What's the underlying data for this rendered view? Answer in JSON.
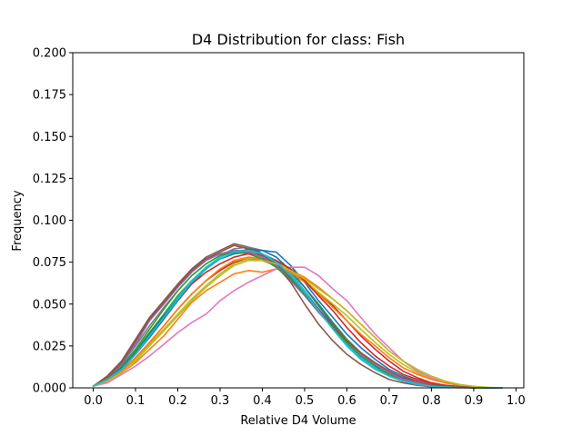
{
  "chart_data": {
    "type": "line",
    "title": "D4 Distribution for class: Fish",
    "xlabel": "Relative D4 Volume",
    "ylabel": "Frequency",
    "xlim": [
      -0.0485,
      1.0185
    ],
    "ylim": [
      0,
      0.2
    ],
    "xticks": [
      "0.0",
      "0.1",
      "0.2",
      "0.3",
      "0.4",
      "0.5",
      "0.6",
      "0.7",
      "0.8",
      "0.9",
      "1.0"
    ],
    "yticks": [
      "0.000",
      "0.025",
      "0.050",
      "0.075",
      "0.100",
      "0.125",
      "0.150",
      "0.175",
      "0.200"
    ],
    "grid": false,
    "legend": "none",
    "x": [
      0.0,
      0.033,
      0.067,
      0.1,
      0.133,
      0.167,
      0.2,
      0.233,
      0.267,
      0.3,
      0.333,
      0.367,
      0.4,
      0.433,
      0.467,
      0.5,
      0.533,
      0.567,
      0.6,
      0.633,
      0.667,
      0.7,
      0.733,
      0.767,
      0.8,
      0.833,
      0.867,
      0.9,
      0.933,
      0.967
    ],
    "series": [
      {
        "color": "#1f77b4",
        "values": [
          0.001,
          0.005,
          0.011,
          0.02,
          0.03,
          0.041,
          0.052,
          0.062,
          0.071,
          0.077,
          0.08,
          0.081,
          0.082,
          0.081,
          0.073,
          0.063,
          0.052,
          0.042,
          0.032,
          0.024,
          0.017,
          0.011,
          0.007,
          0.004,
          0.002,
          0.001,
          0.0005,
          0.0002,
          0.0001,
          0.0
        ]
      },
      {
        "color": "#ff7f0e",
        "values": [
          0.001,
          0.004,
          0.009,
          0.015,
          0.023,
          0.031,
          0.041,
          0.051,
          0.058,
          0.063,
          0.068,
          0.07,
          0.069,
          0.071,
          0.07,
          0.066,
          0.06,
          0.053,
          0.046,
          0.038,
          0.03,
          0.022,
          0.016,
          0.01,
          0.006,
          0.003,
          0.0015,
          0.0007,
          0.0002,
          0.0
        ]
      },
      {
        "color": "#2ca02c",
        "values": [
          0.001,
          0.005,
          0.012,
          0.022,
          0.033,
          0.044,
          0.055,
          0.064,
          0.072,
          0.077,
          0.08,
          0.081,
          0.079,
          0.075,
          0.069,
          0.06,
          0.05,
          0.039,
          0.029,
          0.021,
          0.014,
          0.009,
          0.005,
          0.003,
          0.0015,
          0.0007,
          0.0003,
          0.0001,
          0.0,
          0.0
        ]
      },
      {
        "color": "#d62728",
        "values": [
          0.001,
          0.005,
          0.01,
          0.018,
          0.027,
          0.037,
          0.047,
          0.056,
          0.064,
          0.07,
          0.075,
          0.077,
          0.076,
          0.073,
          0.069,
          0.064,
          0.057,
          0.049,
          0.04,
          0.031,
          0.023,
          0.016,
          0.01,
          0.006,
          0.003,
          0.0015,
          0.0007,
          0.0003,
          0.0001,
          0.0
        ]
      },
      {
        "color": "#9467bd",
        "values": [
          0.001,
          0.006,
          0.015,
          0.027,
          0.041,
          0.051,
          0.061,
          0.07,
          0.077,
          0.08,
          0.081,
          0.08,
          0.077,
          0.072,
          0.064,
          0.055,
          0.045,
          0.036,
          0.027,
          0.02,
          0.014,
          0.009,
          0.006,
          0.004,
          0.002,
          0.001,
          0.0005,
          0.0002,
          0.0001,
          0.0
        ]
      },
      {
        "color": "#8c564b",
        "values": [
          0.001,
          0.007,
          0.016,
          0.029,
          0.042,
          0.052,
          0.062,
          0.071,
          0.078,
          0.082,
          0.086,
          0.084,
          0.08,
          0.073,
          0.063,
          0.05,
          0.038,
          0.028,
          0.02,
          0.014,
          0.009,
          0.005,
          0.003,
          0.0015,
          0.0007,
          0.0003,
          0.0001,
          0.0,
          0.0,
          0.0
        ]
      },
      {
        "color": "#e377c2",
        "values": [
          0.001,
          0.003,
          0.008,
          0.013,
          0.019,
          0.026,
          0.033,
          0.039,
          0.044,
          0.052,
          0.058,
          0.063,
          0.067,
          0.071,
          0.072,
          0.072,
          0.067,
          0.059,
          0.052,
          0.042,
          0.032,
          0.024,
          0.016,
          0.01,
          0.006,
          0.003,
          0.0015,
          0.0006,
          0.0002,
          0.0
        ]
      },
      {
        "color": "#7f7f7f",
        "values": [
          0.001,
          0.006,
          0.014,
          0.025,
          0.037,
          0.048,
          0.058,
          0.067,
          0.074,
          0.079,
          0.083,
          0.084,
          0.082,
          0.078,
          0.07,
          0.06,
          0.049,
          0.038,
          0.028,
          0.02,
          0.013,
          0.008,
          0.005,
          0.003,
          0.0015,
          0.0007,
          0.0003,
          0.0001,
          0.0,
          0.0
        ]
      },
      {
        "color": "#bcbd22",
        "values": [
          0.001,
          0.004,
          0.01,
          0.017,
          0.026,
          0.035,
          0.044,
          0.053,
          0.061,
          0.068,
          0.074,
          0.077,
          0.077,
          0.075,
          0.07,
          0.064,
          0.057,
          0.05,
          0.043,
          0.035,
          0.027,
          0.02,
          0.014,
          0.009,
          0.005,
          0.003,
          0.0015,
          0.0006,
          0.0002,
          0.0
        ]
      },
      {
        "color": "#17becf",
        "values": [
          0.001,
          0.005,
          0.012,
          0.021,
          0.032,
          0.043,
          0.054,
          0.064,
          0.072,
          0.078,
          0.082,
          0.082,
          0.08,
          0.076,
          0.068,
          0.058,
          0.047,
          0.036,
          0.026,
          0.018,
          0.012,
          0.007,
          0.004,
          0.002,
          0.001,
          0.0005,
          0.0002,
          0.0001,
          0.0,
          0.0
        ]
      },
      {
        "color": "#1f77b4",
        "values": [
          0.001,
          0.005,
          0.012,
          0.021,
          0.032,
          0.043,
          0.053,
          0.063,
          0.071,
          0.077,
          0.08,
          0.083,
          0.082,
          0.078,
          0.07,
          0.06,
          0.049,
          0.038,
          0.028,
          0.02,
          0.013,
          0.008,
          0.005,
          0.003,
          0.0015,
          0.0007,
          0.0003,
          0.0001,
          0.0,
          0.0
        ]
      },
      {
        "color": "#ff7f0e",
        "values": [
          0.001,
          0.004,
          0.01,
          0.018,
          0.027,
          0.037,
          0.047,
          0.056,
          0.064,
          0.071,
          0.076,
          0.078,
          0.077,
          0.074,
          0.069,
          0.063,
          0.056,
          0.048,
          0.04,
          0.032,
          0.025,
          0.018,
          0.012,
          0.008,
          0.005,
          0.003,
          0.0015,
          0.0006,
          0.0002,
          0.0
        ]
      },
      {
        "color": "#2ca02c",
        "values": [
          0.001,
          0.006,
          0.013,
          0.023,
          0.035,
          0.047,
          0.058,
          0.067,
          0.074,
          0.079,
          0.081,
          0.08,
          0.077,
          0.072,
          0.065,
          0.056,
          0.046,
          0.036,
          0.027,
          0.019,
          0.013,
          0.008,
          0.005,
          0.003,
          0.0015,
          0.0007,
          0.0003,
          0.0001,
          0.0,
          0.0
        ]
      },
      {
        "color": "#d62728",
        "values": [
          0.001,
          0.005,
          0.011,
          0.02,
          0.031,
          0.042,
          0.053,
          0.062,
          0.069,
          0.074,
          0.078,
          0.08,
          0.079,
          0.076,
          0.071,
          0.064,
          0.055,
          0.046,
          0.036,
          0.027,
          0.019,
          0.013,
          0.008,
          0.005,
          0.003,
          0.0015,
          0.0007,
          0.0003,
          0.0001,
          0.0
        ]
      },
      {
        "color": "#9467bd",
        "values": [
          0.001,
          0.006,
          0.014,
          0.026,
          0.04,
          0.05,
          0.06,
          0.069,
          0.076,
          0.08,
          0.082,
          0.081,
          0.078,
          0.073,
          0.066,
          0.057,
          0.047,
          0.037,
          0.028,
          0.02,
          0.014,
          0.009,
          0.005,
          0.003,
          0.0015,
          0.0007,
          0.0003,
          0.0001,
          0.0,
          0.0
        ]
      },
      {
        "color": "#8c564b",
        "values": [
          0.001,
          0.006,
          0.015,
          0.028,
          0.041,
          0.051,
          0.061,
          0.07,
          0.077,
          0.081,
          0.085,
          0.083,
          0.079,
          0.074,
          0.066,
          0.057,
          0.047,
          0.037,
          0.028,
          0.021,
          0.015,
          0.01,
          0.006,
          0.004,
          0.002,
          0.001,
          0.0005,
          0.0002,
          0.0001,
          0.0
        ]
      },
      {
        "color": "#bcbd22",
        "values": [
          0.001,
          0.004,
          0.009,
          0.016,
          0.025,
          0.034,
          0.043,
          0.052,
          0.06,
          0.067,
          0.073,
          0.076,
          0.076,
          0.074,
          0.07,
          0.065,
          0.059,
          0.053,
          0.046,
          0.038,
          0.03,
          0.022,
          0.016,
          0.011,
          0.007,
          0.004,
          0.002,
          0.0009,
          0.0003,
          0.0
        ]
      },
      {
        "color": "#17becf",
        "values": [
          0.001,
          0.005,
          0.011,
          0.02,
          0.031,
          0.042,
          0.053,
          0.063,
          0.071,
          0.077,
          0.081,
          0.082,
          0.08,
          0.075,
          0.067,
          0.057,
          0.046,
          0.035,
          0.025,
          0.017,
          0.011,
          0.007,
          0.004,
          0.002,
          0.001,
          0.0005,
          0.0002,
          0.0001,
          0.0,
          0.0
        ]
      }
    ]
  }
}
